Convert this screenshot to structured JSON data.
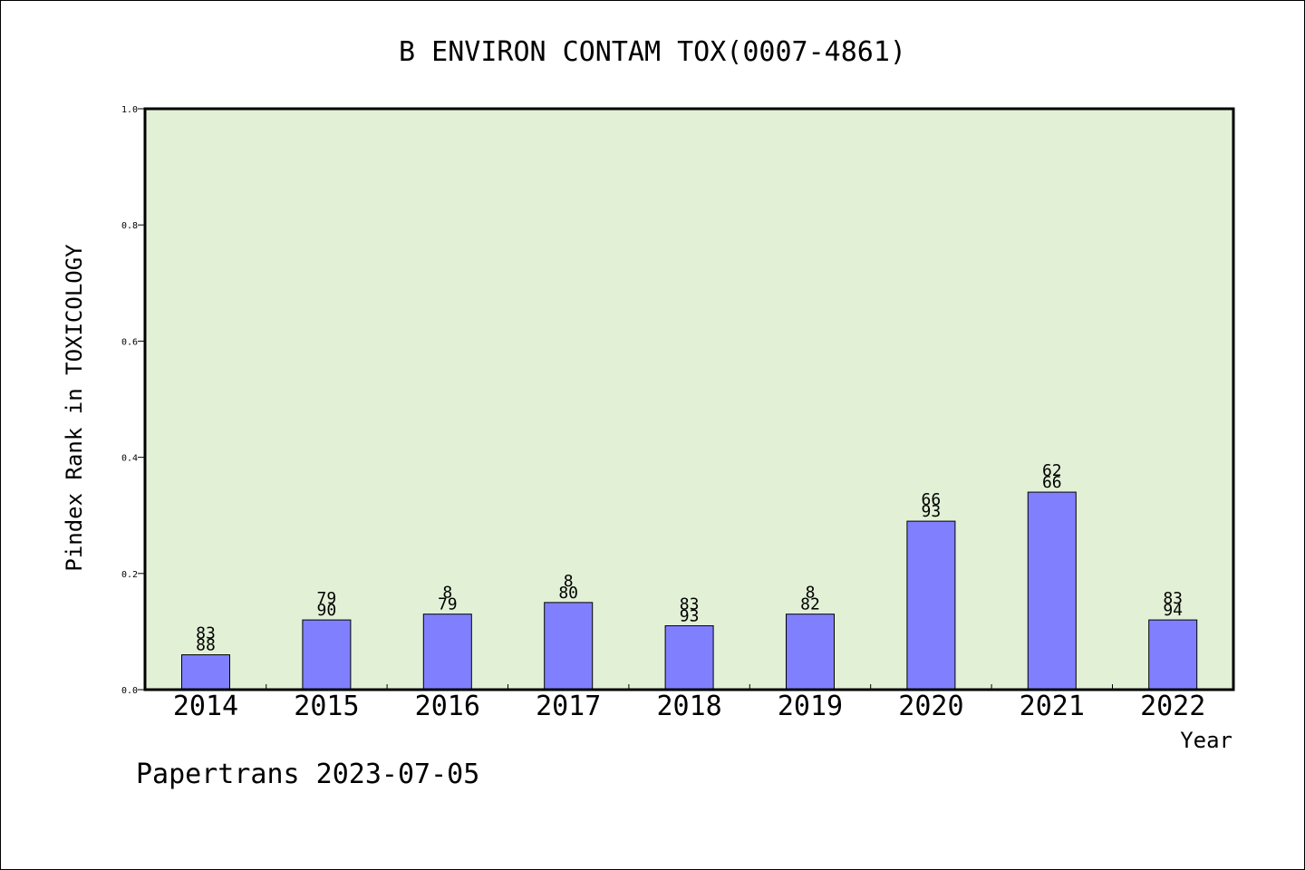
{
  "chart_data": {
    "type": "bar",
    "title": "B ENVIRON CONTAM TOX(0007-4861)",
    "xlabel": "Year",
    "ylabel": "Pindex Rank in TOXICOLOGY",
    "footer": "Papertrans 2023-07-05",
    "ylim": [
      0,
      1.0
    ],
    "yticks": [
      "0.0",
      "0.2",
      "0.4",
      "0.6",
      "0.8",
      "1.0"
    ],
    "grid": false,
    "colors": {
      "bar": "#8080ff",
      "plot_bg": "#e2f0d6",
      "axis": "#000000"
    },
    "categories": [
      "2014",
      "2015",
      "2016",
      "2017",
      "2018",
      "2019",
      "2020",
      "2021",
      "2022"
    ],
    "values": [
      0.06,
      0.12,
      0.13,
      0.15,
      0.11,
      0.13,
      0.29,
      0.34,
      0.12
    ],
    "labels": [
      {
        "top": "83",
        "bottom": "88"
      },
      {
        "top": "79",
        "bottom": "90"
      },
      {
        "top": "8",
        "bottom": "79"
      },
      {
        "top": "8",
        "bottom": "80"
      },
      {
        "top": "83",
        "bottom": "93"
      },
      {
        "top": "8",
        "bottom": "82"
      },
      {
        "top": "66",
        "bottom": "93"
      },
      {
        "top": "62",
        "bottom": "66"
      },
      {
        "top": "83",
        "bottom": "94"
      }
    ]
  }
}
